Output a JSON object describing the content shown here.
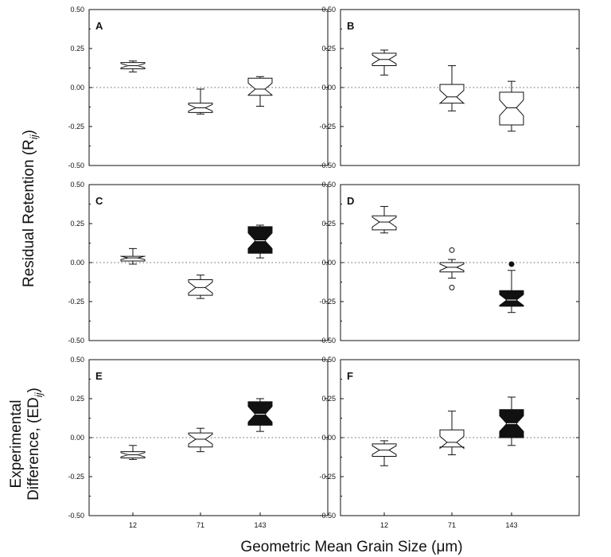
{
  "chart_data": {
    "type": "box",
    "xlabel": "Geometric Mean Grain Size (μm)",
    "ylabel_top": "Residual Retention (R",
    "ylabel_top_sub": "ij",
    "ylabel_top_close": ")",
    "ylabel_bottom_line1": "Experimental",
    "ylabel_bottom_line2": "Difference, (ED",
    "ylabel_bottom_sub": "ij",
    "ylabel_bottom_close": ")",
    "categories": [
      "12",
      "71",
      "143"
    ],
    "ylim": [
      -0.5,
      0.5
    ],
    "yticks": [
      "0.50",
      "0.25",
      "0.00",
      "-0.25",
      "-0.50"
    ],
    "reference_line": 0,
    "panels": [
      {
        "letter": "A",
        "boxes": [
          {
            "cat": "12",
            "min": 0.1,
            "q1": 0.12,
            "med": 0.14,
            "q3": 0.16,
            "max": 0.17,
            "fill": "white",
            "outliers": []
          },
          {
            "cat": "71",
            "min": -0.17,
            "q1": -0.16,
            "med": -0.13,
            "q3": -0.1,
            "max": -0.01,
            "fill": "white",
            "outliers": []
          },
          {
            "cat": "143",
            "min": -0.12,
            "q1": -0.05,
            "med": -0.01,
            "q3": 0.06,
            "max": 0.07,
            "fill": "white",
            "outliers": []
          }
        ]
      },
      {
        "letter": "B",
        "boxes": [
          {
            "cat": "12",
            "min": 0.08,
            "q1": 0.14,
            "med": 0.18,
            "q3": 0.22,
            "max": 0.24,
            "fill": "white",
            "outliers": []
          },
          {
            "cat": "71",
            "min": -0.15,
            "q1": -0.1,
            "med": -0.06,
            "q3": 0.02,
            "max": 0.14,
            "fill": "white",
            "outliers": []
          },
          {
            "cat": "143",
            "min": -0.28,
            "q1": -0.24,
            "med": -0.13,
            "q3": -0.03,
            "max": 0.04,
            "fill": "white",
            "outliers": []
          }
        ]
      },
      {
        "letter": "C",
        "boxes": [
          {
            "cat": "12",
            "min": -0.01,
            "q1": 0.01,
            "med": 0.03,
            "q3": 0.04,
            "max": 0.09,
            "fill": "white",
            "outliers": []
          },
          {
            "cat": "71",
            "min": -0.23,
            "q1": -0.21,
            "med": -0.16,
            "q3": -0.11,
            "max": -0.08,
            "fill": "white",
            "outliers": []
          },
          {
            "cat": "143",
            "min": 0.03,
            "q1": 0.06,
            "med": 0.14,
            "q3": 0.23,
            "max": 0.24,
            "fill": "black",
            "outliers": []
          }
        ]
      },
      {
        "letter": "D",
        "boxes": [
          {
            "cat": "12",
            "min": 0.19,
            "q1": 0.21,
            "med": 0.26,
            "q3": 0.3,
            "max": 0.36,
            "fill": "white",
            "outliers": []
          },
          {
            "cat": "71",
            "min": -0.1,
            "q1": -0.06,
            "med": -0.03,
            "q3": 0.0,
            "max": 0.02,
            "fill": "white",
            "outliers": [
              0.08,
              -0.16
            ]
          },
          {
            "cat": "143",
            "min": -0.32,
            "q1": -0.28,
            "med": -0.24,
            "q3": -0.18,
            "max": -0.05,
            "fill": "black",
            "outliers": [
              -0.01
            ]
          }
        ]
      },
      {
        "letter": "E",
        "boxes": [
          {
            "cat": "12",
            "min": -0.14,
            "q1": -0.13,
            "med": -0.11,
            "q3": -0.09,
            "max": -0.05,
            "fill": "white",
            "outliers": []
          },
          {
            "cat": "71",
            "min": -0.09,
            "q1": -0.06,
            "med": -0.01,
            "q3": 0.03,
            "max": 0.06,
            "fill": "white",
            "outliers": []
          },
          {
            "cat": "143",
            "min": 0.04,
            "q1": 0.08,
            "med": 0.15,
            "q3": 0.23,
            "max": 0.25,
            "fill": "black",
            "outliers": []
          }
        ]
      },
      {
        "letter": "F",
        "boxes": [
          {
            "cat": "12",
            "min": -0.18,
            "q1": -0.12,
            "med": -0.08,
            "q3": -0.04,
            "max": -0.02,
            "fill": "white",
            "outliers": []
          },
          {
            "cat": "71",
            "min": -0.11,
            "q1": -0.06,
            "med": -0.03,
            "q3": 0.05,
            "max": 0.17,
            "fill": "white",
            "outliers": []
          },
          {
            "cat": "143",
            "min": -0.05,
            "q1": 0.0,
            "med": 0.09,
            "q3": 0.18,
            "max": 0.26,
            "fill": "black",
            "outliers": []
          }
        ]
      }
    ]
  }
}
